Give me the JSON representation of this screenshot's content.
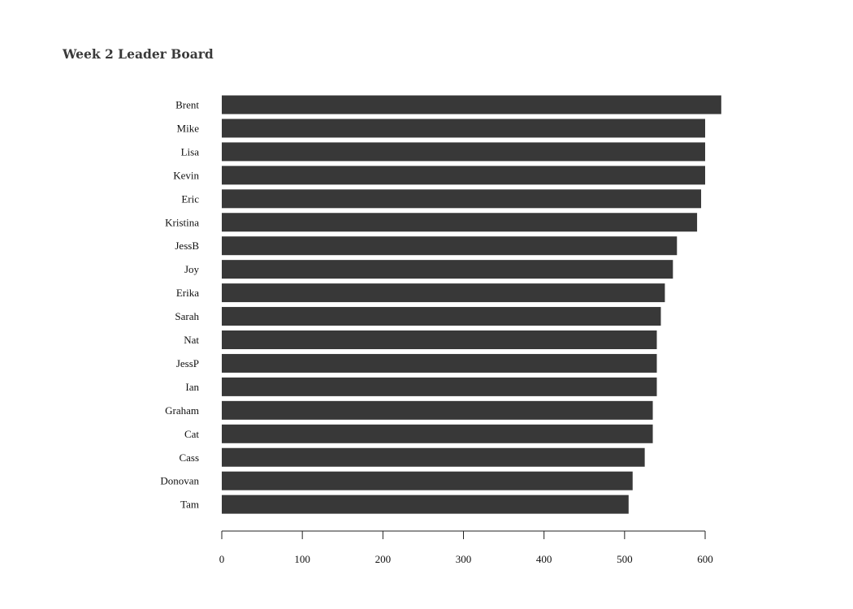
{
  "chart_data": {
    "type": "bar",
    "orientation": "horizontal",
    "title": "Week 2 Leader Board",
    "xlabel": "",
    "ylabel": "",
    "categories": [
      "Brent",
      "Mike",
      "Lisa",
      "Kevin",
      "Eric",
      "Kristina",
      "JessB",
      "Joy",
      "Erika",
      "Sarah",
      "Nat",
      "JessP",
      "Ian",
      "Graham",
      "Cat",
      "Cass",
      "Donovan",
      "Tam"
    ],
    "values": [
      620,
      600,
      600,
      600,
      595,
      590,
      565,
      560,
      550,
      545,
      540,
      540,
      540,
      535,
      535,
      525,
      510,
      505
    ],
    "xlim": [
      0,
      600
    ],
    "xticks": [
      "0",
      "100",
      "200",
      "300",
      "400",
      "500",
      "600"
    ],
    "grid": false,
    "legend": "none",
    "bar_color": "#383838"
  }
}
